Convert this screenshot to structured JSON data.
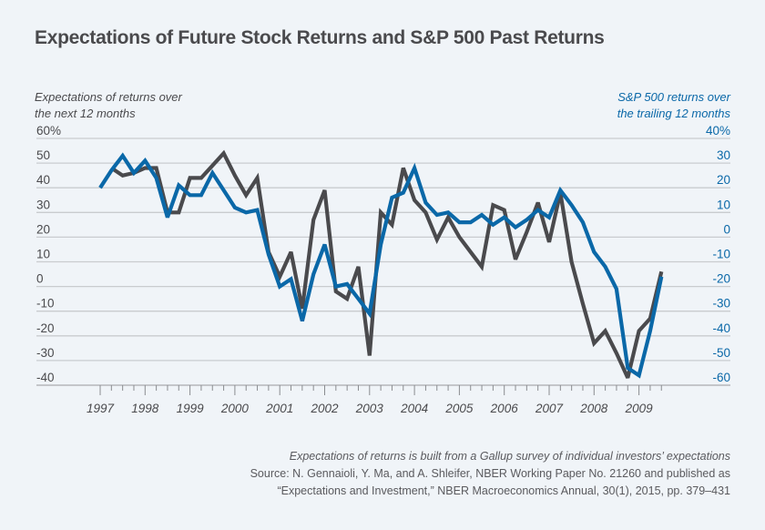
{
  "chart_data": {
    "type": "line",
    "title": "Expectations of Future Stock Returns and S&P 500 Past Returns",
    "ylabel_left": [
      "Expectations of returns over",
      "the next 12 months"
    ],
    "ylabel_right": [
      "S&P 500 returns over",
      "the trailing 12 months"
    ],
    "xlabel": "",
    "x_ticks": [
      "1997",
      "1998",
      "1999",
      "2000",
      "2001",
      "2002",
      "2003",
      "2004",
      "2005",
      "2006",
      "2007",
      "2008",
      "2009"
    ],
    "x_range": [
      1997.0,
      2009.5
    ],
    "x_step": "quarterly",
    "y_left": {
      "range": [
        -40,
        60
      ],
      "ticks": [
        60,
        50,
        40,
        30,
        20,
        10,
        0,
        -10,
        -20,
        -30,
        -40
      ],
      "tick_labels": [
        "60%",
        "50",
        "40",
        "30",
        "20",
        "10",
        "0",
        "-10",
        "-20",
        "-30",
        "-40"
      ]
    },
    "y_right": {
      "range": [
        -60,
        40
      ],
      "ticks": [
        40,
        30,
        20,
        10,
        0,
        -10,
        -20,
        -30,
        -40,
        -50,
        -60
      ],
      "tick_labels": [
        "40%",
        "30",
        "20",
        "10",
        "0",
        "-10",
        "-20",
        "-30",
        "-40",
        "-50",
        "-60"
      ]
    },
    "grid": true,
    "legend": "none (axis titles color-coded)",
    "series": [
      {
        "name": "Expectations of returns over the next 12 months",
        "axis": "left",
        "color": "#4a4a4d",
        "x": [
          1997.25,
          1997.5,
          1997.75,
          1998.0,
          1998.25,
          1998.5,
          1998.75,
          1999.0,
          1999.25,
          1999.5,
          1999.75,
          2000.0,
          2000.25,
          2000.5,
          2000.75,
          2001.0,
          2001.25,
          2001.5,
          2001.75,
          2002.0,
          2002.25,
          2002.5,
          2002.75,
          2003.0,
          2003.25,
          2003.5,
          2003.75,
          2004.0,
          2004.25,
          2004.5,
          2004.75,
          2005.0,
          2005.25,
          2005.5,
          2005.75,
          2006.0,
          2006.25,
          2006.5,
          2006.75,
          2007.0,
          2007.25,
          2007.5,
          2007.75,
          2008.0,
          2008.25,
          2008.5,
          2008.75,
          2009.0,
          2009.25,
          2009.5
        ],
        "values": [
          48,
          45,
          46,
          48,
          48,
          30,
          30,
          44,
          44,
          49,
          54,
          45,
          37,
          44,
          14,
          4,
          14,
          -9,
          27,
          39,
          -2,
          -5,
          8,
          -28,
          30,
          25,
          48,
          35,
          30,
          19,
          28,
          20,
          14,
          8,
          33,
          31,
          11,
          22,
          34,
          18,
          38,
          10,
          -7,
          -23,
          -18,
          -27,
          -37,
          -18,
          -13,
          6
        ]
      },
      {
        "name": "S&P 500 returns over the trailing 12 months",
        "axis": "right",
        "color": "#0a68a8",
        "x": [
          1997.0,
          1997.25,
          1997.5,
          1997.75,
          1998.0,
          1998.25,
          1998.5,
          1998.75,
          1999.0,
          1999.25,
          1999.5,
          1999.75,
          2000.0,
          2000.25,
          2000.5,
          2000.75,
          2001.0,
          2001.25,
          2001.5,
          2001.75,
          2002.0,
          2002.25,
          2002.5,
          2002.75,
          2003.0,
          2003.25,
          2003.5,
          2003.75,
          2004.0,
          2004.25,
          2004.5,
          2004.75,
          2005.0,
          2005.25,
          2005.5,
          2005.75,
          2006.0,
          2006.25,
          2006.5,
          2006.75,
          2007.0,
          2007.25,
          2007.5,
          2007.75,
          2008.0,
          2008.25,
          2008.5,
          2008.75,
          2009.0,
          2009.25,
          2009.5
        ],
        "values": [
          20,
          27,
          33,
          26,
          31,
          24,
          8,
          21,
          17,
          17,
          26,
          19,
          12,
          10,
          11,
          -7,
          -20,
          -17,
          -34,
          -15,
          -3,
          -20,
          -19,
          -25,
          -31,
          -3,
          16,
          18,
          28,
          14,
          9,
          10,
          6,
          6,
          9,
          5,
          8,
          4,
          7,
          11,
          8,
          19,
          13,
          6,
          -6,
          -12,
          -21,
          -53,
          -56,
          -38,
          -16
        ]
      }
    ]
  },
  "caption": {
    "note": "Expectations of returns is built from a Gallup survey of individual investors’ expectations",
    "source_line1": "Source: N. Gennaioli, Y. Ma, and A. Shleifer, NBER Working Paper No. 21260 and published as",
    "source_line2": "“Expectations and Investment,” NBER Macroeconomics Annual, 30(1), 2015, pp. 379–431"
  }
}
